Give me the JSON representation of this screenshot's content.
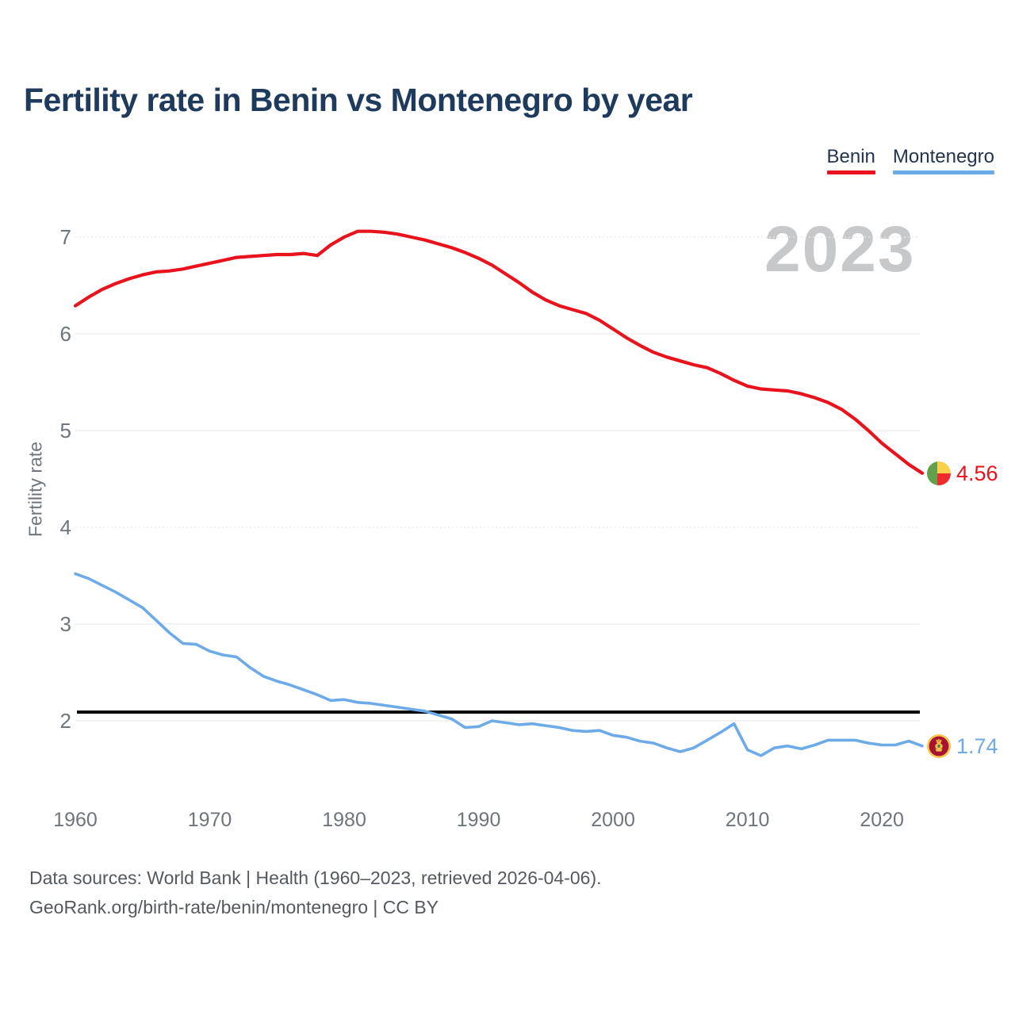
{
  "header": {
    "title": "Fertility rate in Benin vs Montenegro by year"
  },
  "legend": {
    "items": [
      {
        "label": "Benin",
        "color": "#e8131c"
      },
      {
        "label": "Montenegro",
        "color": "#6cabe8"
      }
    ]
  },
  "watermark": "2023",
  "footer": {
    "line1": "Data sources: World Bank | Health (1960–2023, retrieved 2026-04-06).",
    "line2": "GeoRank.org/birth-rate/benin/montenegro | CC BY"
  },
  "chart_data": {
    "type": "line",
    "title": "Fertility rate in Benin vs Montenegro by year",
    "xlabel": "",
    "ylabel": "Fertility rate",
    "years_start": 1960,
    "years_end": 2023,
    "x_ticks": [
      1960,
      1970,
      1980,
      1990,
      2000,
      2010,
      2020
    ],
    "y_ticks": [
      2,
      3,
      4,
      5,
      6,
      7
    ],
    "ylim": [
      1.55,
      7.3
    ],
    "reference_line": 2.09,
    "grid": "horizontal",
    "legend_position": "top-right",
    "series": [
      {
        "name": "Benin",
        "color": "#e8131c",
        "values": [
          6.29,
          6.38,
          6.46,
          6.52,
          6.57,
          6.61,
          6.64,
          6.65,
          6.67,
          6.7,
          6.73,
          6.76,
          6.79,
          6.8,
          6.81,
          6.82,
          6.82,
          6.83,
          6.81,
          6.92,
          7.0,
          7.06,
          7.06,
          7.05,
          7.03,
          7.0,
          6.97,
          6.93,
          6.89,
          6.84,
          6.78,
          6.71,
          6.62,
          6.53,
          6.43,
          6.35,
          6.29,
          6.25,
          6.21,
          6.14,
          6.05,
          5.96,
          5.88,
          5.81,
          5.76,
          5.72,
          5.68,
          5.65,
          5.59,
          5.52,
          5.46,
          5.43,
          5.42,
          5.41,
          5.38,
          5.34,
          5.29,
          5.22,
          5.12,
          5.0,
          4.87,
          4.76,
          4.65,
          4.56
        ]
      },
      {
        "name": "Montenegro",
        "color": "#6cabe8",
        "values": [
          3.52,
          3.47,
          3.4,
          3.33,
          3.25,
          3.17,
          3.04,
          2.91,
          2.8,
          2.79,
          2.72,
          2.68,
          2.66,
          2.55,
          2.46,
          2.41,
          2.37,
          2.32,
          2.27,
          2.21,
          2.22,
          2.19,
          2.18,
          2.16,
          2.14,
          2.12,
          2.1,
          2.06,
          2.02,
          1.93,
          1.94,
          2.0,
          1.98,
          1.96,
          1.97,
          1.95,
          1.93,
          1.9,
          1.89,
          1.9,
          1.85,
          1.83,
          1.79,
          1.77,
          1.72,
          1.68,
          1.72,
          1.8,
          1.88,
          1.97,
          1.7,
          1.64,
          1.72,
          1.74,
          1.71,
          1.75,
          1.8,
          1.8,
          1.8,
          1.77,
          1.75,
          1.75,
          1.79,
          1.74
        ]
      }
    ],
    "end_labels": [
      {
        "series": "Benin",
        "value": "4.56"
      },
      {
        "series": "Montenegro",
        "value": "1.74"
      }
    ]
  }
}
